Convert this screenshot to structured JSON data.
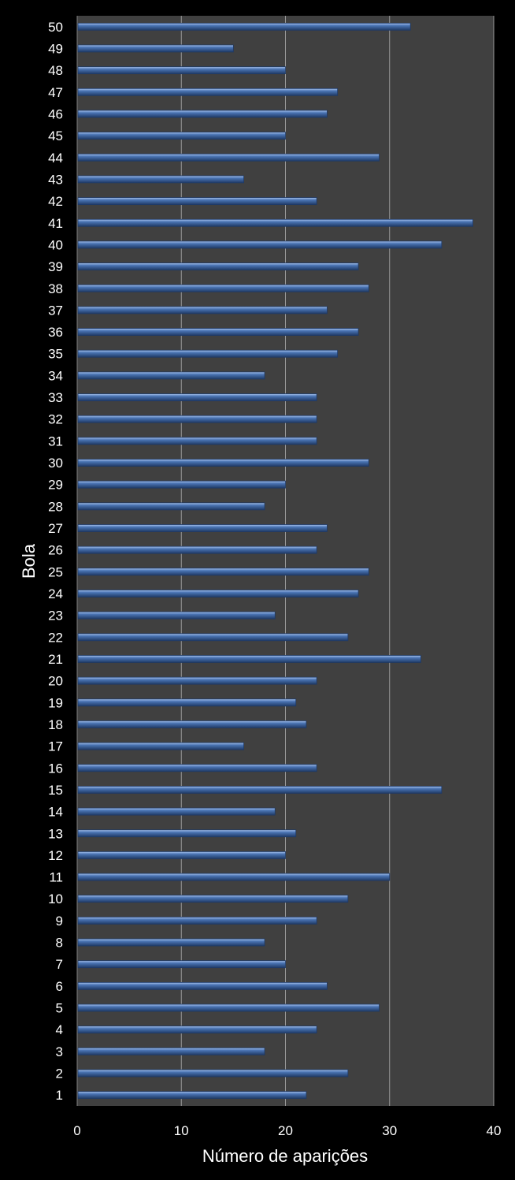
{
  "chart_data": {
    "type": "bar",
    "orientation": "horizontal",
    "title": "",
    "xlabel": "Número de aparições",
    "ylabel": "Bola",
    "xlim": [
      0,
      40
    ],
    "xticks": [
      0,
      10,
      20,
      30,
      40
    ],
    "grid": "vertical",
    "legend": "none",
    "categories": [
      "1",
      "2",
      "3",
      "4",
      "5",
      "6",
      "7",
      "8",
      "9",
      "10",
      "11",
      "12",
      "13",
      "14",
      "15",
      "16",
      "17",
      "18",
      "19",
      "20",
      "21",
      "22",
      "23",
      "24",
      "25",
      "26",
      "27",
      "28",
      "29",
      "30",
      "31",
      "32",
      "33",
      "34",
      "35",
      "36",
      "37",
      "38",
      "39",
      "40",
      "41",
      "42",
      "43",
      "44",
      "45",
      "46",
      "47",
      "48",
      "49",
      "50"
    ],
    "values": [
      22,
      26,
      18,
      23,
      29,
      24,
      20,
      18,
      23,
      26,
      30,
      20,
      21,
      19,
      35,
      23,
      16,
      22,
      21,
      23,
      33,
      26,
      19,
      27,
      28,
      23,
      24,
      18,
      20,
      28,
      23,
      23,
      23,
      18,
      25,
      27,
      24,
      28,
      27,
      35,
      38,
      23,
      16,
      29,
      20,
      24,
      25,
      20,
      15,
      32
    ]
  },
  "colors": {
    "page_background": "#000000",
    "plot_background": "#404040",
    "bar_fill": "#4a74b3",
    "bar_highlight": "#a9c4ee",
    "bar_shadow": "#1f3a66",
    "gridline": "#9a9a9a",
    "text": "#ffffff"
  }
}
